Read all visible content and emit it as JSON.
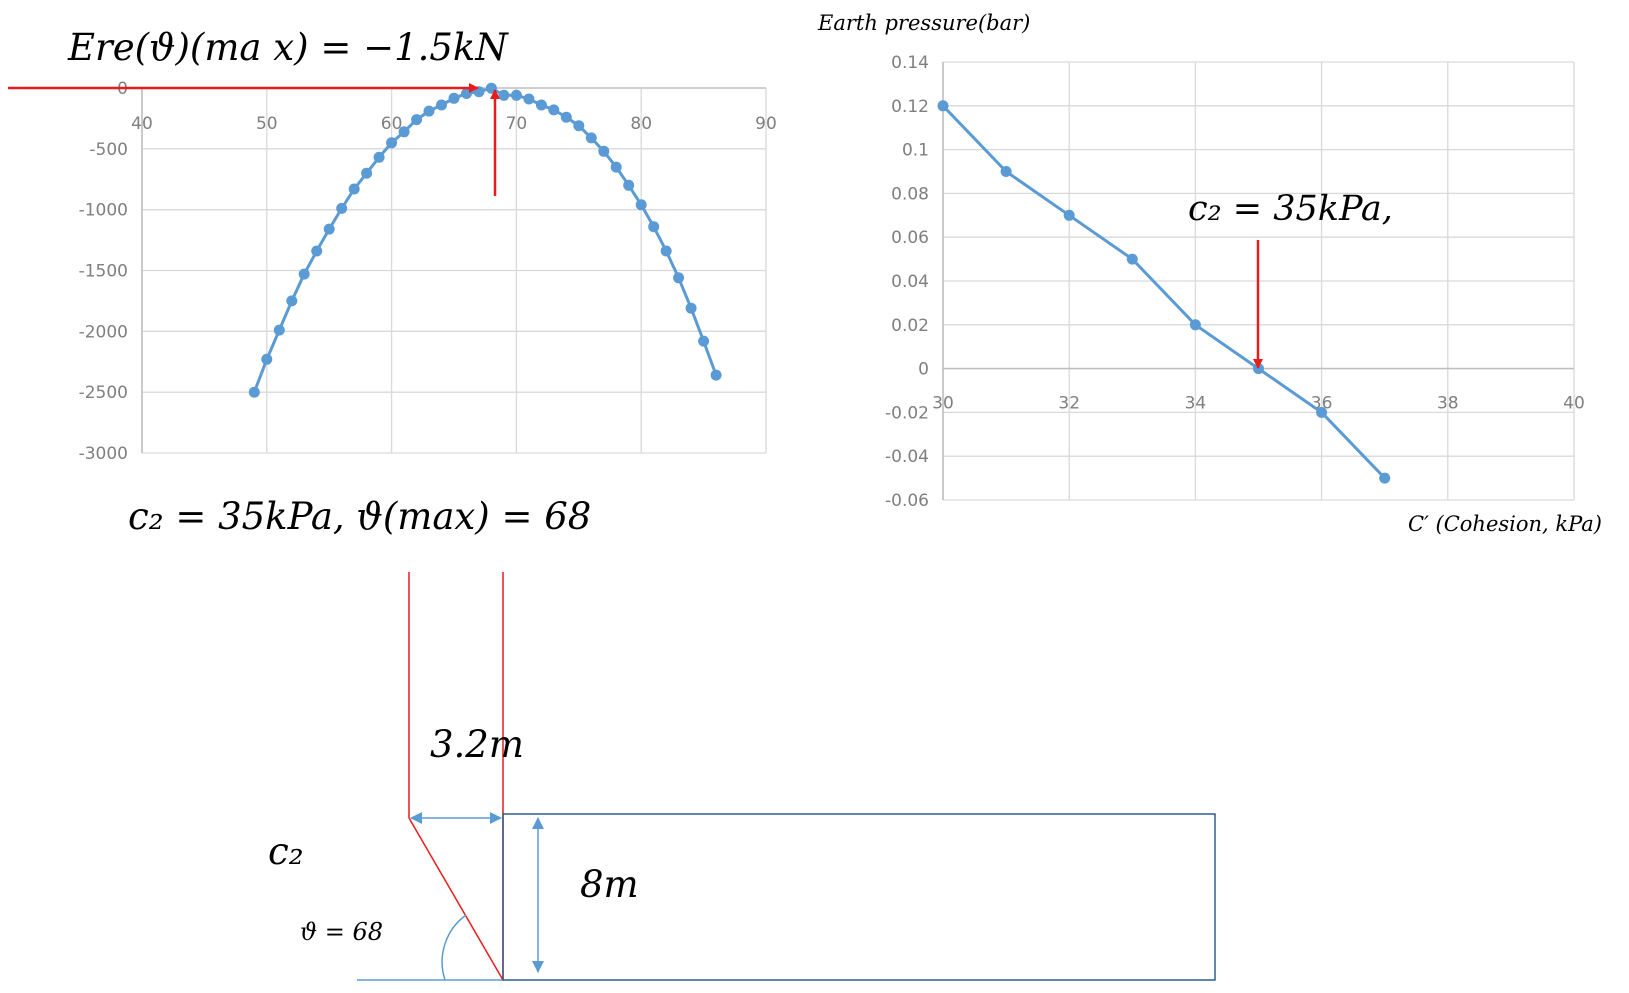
{
  "chart_data": [
    {
      "type": "scatter",
      "title": "",
      "xlabel": "",
      "ylabel": "",
      "xlim": [
        40,
        90
      ],
      "ylim": [
        -3000,
        0
      ],
      "xticks": [
        "40",
        "50",
        "60",
        "70",
        "80",
        "90"
      ],
      "yticks": [
        "0",
        "-500",
        "-1000",
        "-1500",
        "-2000",
        "-2500",
        "-3000"
      ],
      "grid": true,
      "legend": "none",
      "series_color": "#5b9bd5",
      "x": [
        49,
        50,
        51,
        52,
        53,
        54,
        55,
        56,
        57,
        58,
        59,
        60,
        61,
        62,
        63,
        64,
        65,
        66,
        67,
        68,
        69,
        70,
        71,
        72,
        73,
        74,
        75,
        76,
        77,
        78,
        79,
        80,
        81,
        82,
        83,
        84,
        85,
        86
      ],
      "y": [
        -2500,
        -2230,
        -1990,
        -1750,
        -1530,
        -1340,
        -1160,
        -990,
        -830,
        -700,
        -570,
        -450,
        -360,
        -260,
        -190,
        -140,
        -85,
        -45,
        -30,
        -1.5,
        -60,
        -60,
        -90,
        -140,
        -180,
        -240,
        -310,
        -410,
        -520,
        -650,
        -800,
        -960,
        -1140,
        -1340,
        -1560,
        -1810,
        -2080,
        -2360
      ]
    },
    {
      "type": "line",
      "title": "",
      "xlabel": "C′ (Cohesion, kPa)",
      "ylabel": "Earth pressure(bar)",
      "xlim": [
        30,
        40
      ],
      "ylim": [
        -0.06,
        0.14
      ],
      "xticks": [
        "30",
        "32",
        "34",
        "36",
        "38",
        "40"
      ],
      "yticks": [
        "0.14",
        "0.12",
        "0.1",
        "0.08",
        "0.06",
        "0.04",
        "0.02",
        "0",
        "-0.02",
        "-0.04",
        "-0.06"
      ],
      "grid": true,
      "legend": "none",
      "series_color": "#5b9bd5",
      "x": [
        30,
        31,
        32,
        33,
        34,
        35,
        36,
        37
      ],
      "y": [
        0.12,
        0.09,
        0.07,
        0.05,
        0.02,
        0,
        -0.02,
        -0.05
      ]
    }
  ],
  "annotations": {
    "ere_max": "Ere(ϑ)(ma x) = −1.5kN",
    "c2_theta": "c₂ = 35kPa,  ϑ(max) = 68",
    "c2_right": "c₂ = 35kPa,",
    "width": "3.2m",
    "height": "8m",
    "c2_label": "c₂",
    "theta_label": "ϑ = 68"
  },
  "colors": {
    "series": "#5b9bd5",
    "arrow": "#e81c1c",
    "grid": "#d9d9d9",
    "axis_text": "#7f7f7f",
    "box": "#2e5f8a"
  }
}
